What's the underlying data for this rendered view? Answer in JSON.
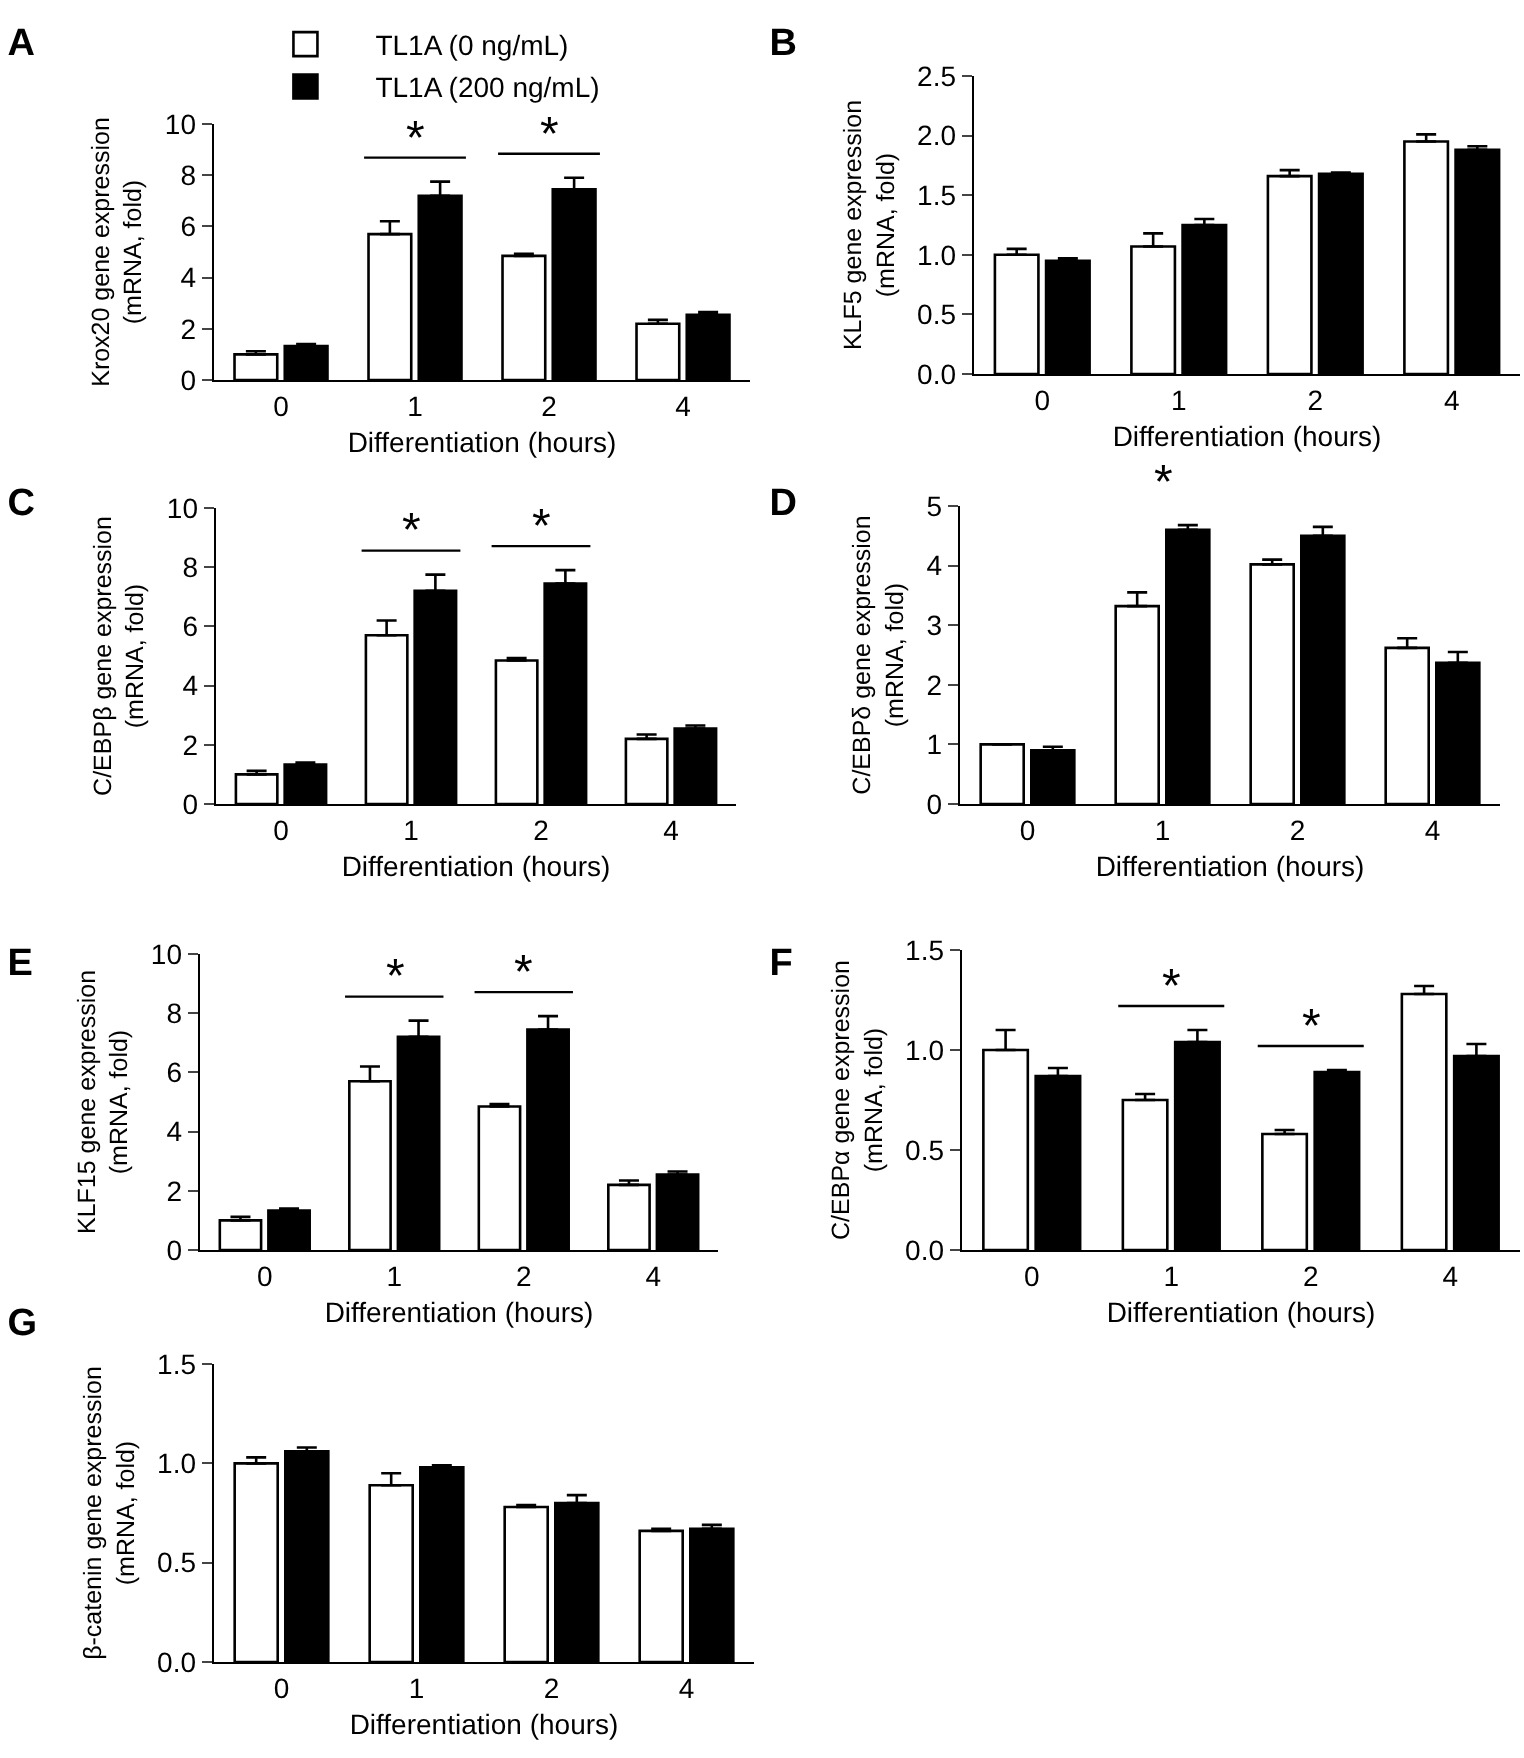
{
  "chart_data": [
    {
      "type": "bar",
      "title": "A",
      "xlabel": "Differentiation (hours)",
      "ylabel": "Krox20 gene expression\n(mRNA, fold)",
      "categories": [
        "0",
        "1",
        "2",
        "4"
      ],
      "legend": "top left",
      "series": [
        {
          "name": "TL1A (0 ng/mL)",
          "color": "#ffffff",
          "values": [
            1.0,
            5.7,
            4.85,
            2.2
          ],
          "errors": [
            [
              1.0,
              1.12
            ],
            [
              5.7,
              6.2
            ],
            [
              4.85,
              4.93
            ],
            [
              2.2,
              2.35
            ]
          ]
        },
        {
          "name": "TL1A (200 ng/mL)",
          "color": "#000000",
          "values": [
            1.33,
            7.2,
            7.45,
            2.55
          ],
          "errors": [
            [
              1.33,
              1.4
            ],
            [
              7.2,
              7.75
            ],
            [
              7.45,
              7.9
            ],
            [
              2.55,
              2.65
            ]
          ]
        }
      ],
      "ylim": [
        0,
        10
      ],
      "yticks": [
        0,
        2,
        4,
        6,
        8,
        10
      ],
      "annotations": [
        {
          "text": "*",
          "x": "1",
          "y": 7.2
        },
        {
          "text": "*",
          "x": "2",
          "y": 7.45
        }
      ]
    },
    {
      "type": "bar",
      "title": "B",
      "xlabel": "Differentiation (hours)",
      "ylabel": "KLF5 gene expression\n(mRNA, fold)",
      "categories": [
        "0",
        "1",
        "2",
        "4"
      ],
      "series": [
        {
          "color": "#ffffff",
          "values": [
            1.0,
            1.07,
            1.66,
            1.95
          ],
          "errors": [
            [
              1.0,
              1.05
            ],
            [
              1.07,
              1.18
            ],
            [
              1.66,
              1.71
            ],
            [
              1.95,
              2.01
            ]
          ]
        },
        {
          "color": "#000000",
          "values": [
            0.95,
            1.25,
            1.68,
            1.88
          ],
          "errors": [
            [
              0.95,
              0.97
            ],
            [
              1.25,
              1.3
            ],
            [
              1.68,
              1.69
            ],
            [
              1.88,
              1.91
            ]
          ]
        }
      ],
      "ylim": [
        0,
        2.5
      ],
      "yticks": [
        {
          "value": 0,
          "label": "0.0"
        },
        0.5,
        {
          "value": 1,
          "label": "1.0"
        },
        1.5,
        {
          "value": 2,
          "label": "2.0"
        },
        2.5
      ]
    },
    {
      "type": "bar",
      "title": "C",
      "xlabel": "Differentiation (hours)",
      "ylabel": "C/EBPβ gene expression\n(mRNA, fold)",
      "categories": [
        "0",
        "1",
        "2",
        "4"
      ],
      "series": [
        {
          "color": "#ffffff",
          "values": [
            1.0,
            5.7,
            4.85,
            2.2
          ],
          "errors": [
            [
              1.0,
              1.12
            ],
            [
              5.7,
              6.2
            ],
            [
              4.85,
              4.93
            ],
            [
              2.2,
              2.35
            ]
          ]
        },
        {
          "color": "#000000",
          "values": [
            1.33,
            7.2,
            7.45,
            2.55
          ],
          "errors": [
            [
              1.33,
              1.4
            ],
            [
              7.2,
              7.75
            ],
            [
              7.45,
              7.9
            ],
            [
              2.55,
              2.65
            ]
          ]
        }
      ],
      "ylim": [
        0,
        10
      ],
      "yticks": [
        0,
        2,
        4,
        6,
        8,
        10
      ],
      "annotations": [
        {
          "text": "*",
          "x": "1",
          "y": 7.2
        },
        {
          "text": "*",
          "x": "2",
          "y": 7.45
        }
      ]
    },
    {
      "type": "bar",
      "title": "D",
      "xlabel": "Differentiation (hours)",
      "ylabel": "C/EBPδ gene expression\n(mRNA, fold)",
      "categories": [
        "0",
        "1",
        "2",
        "4"
      ],
      "series": [
        {
          "color": "#ffffff",
          "values": [
            1.0,
            3.32,
            4.02,
            2.62
          ],
          "errors": [
            [
              1.0,
              1.0
            ],
            [
              3.32,
              3.55
            ],
            [
              4.02,
              4.1
            ],
            [
              2.62,
              2.78
            ]
          ]
        },
        {
          "color": "#000000",
          "values": [
            0.9,
            4.6,
            4.5,
            2.37
          ],
          "errors": [
            [
              0.9,
              0.96
            ],
            [
              4.6,
              4.68
            ],
            [
              4.5,
              4.65
            ],
            [
              2.37,
              2.55
            ]
          ]
        }
      ],
      "ylim": [
        0,
        5
      ],
      "yticks": [
        0,
        1,
        2,
        3,
        4,
        5
      ],
      "annotations": [
        {
          "text": "*",
          "x": "1",
          "y": 4.6
        }
      ]
    },
    {
      "type": "bar",
      "title": "E",
      "xlabel": "Differentiation (hours)",
      "ylabel": "KLF15 gene expression\n(mRNA, fold)",
      "categories": [
        "0",
        "1",
        "2",
        "4"
      ],
      "series": [
        {
          "color": "#ffffff",
          "values": [
            1.0,
            5.7,
            4.85,
            2.2
          ],
          "errors": [
            [
              1.0,
              1.12
            ],
            [
              5.7,
              6.2
            ],
            [
              4.85,
              4.93
            ],
            [
              2.2,
              2.35
            ]
          ]
        },
        {
          "color": "#000000",
          "values": [
            1.33,
            7.2,
            7.45,
            2.55
          ],
          "errors": [
            [
              1.33,
              1.4
            ],
            [
              7.2,
              7.75
            ],
            [
              7.45,
              7.9
            ],
            [
              2.55,
              2.65
            ]
          ]
        }
      ],
      "ylim": [
        0,
        10
      ],
      "yticks": [
        0,
        2,
        4,
        6,
        8,
        10
      ],
      "annotations": [
        {
          "text": "*",
          "x": "1",
          "y": 7.2
        },
        {
          "text": "*",
          "x": "2",
          "y": 7.45
        }
      ]
    },
    {
      "type": "bar",
      "title": "F",
      "xlabel": "Differentiation (hours)",
      "ylabel": "C/EBPα gene expression\n(mRNA, fold)",
      "categories": [
        "0",
        "1",
        "2",
        "4"
      ],
      "series": [
        {
          "color": "#ffffff",
          "values": [
            1.0,
            0.75,
            0.58,
            1.28
          ],
          "errors": [
            [
              1.0,
              1.1
            ],
            [
              0.75,
              0.78
            ],
            [
              0.58,
              0.6
            ],
            [
              1.28,
              1.32
            ]
          ]
        },
        {
          "color": "#000000",
          "values": [
            0.87,
            1.04,
            0.89,
            0.97
          ],
          "errors": [
            [
              0.87,
              0.91
            ],
            [
              1.04,
              1.1
            ],
            [
              0.89,
              0.9
            ],
            [
              0.97,
              1.03
            ]
          ]
        }
      ],
      "ylim": [
        0,
        1.5
      ],
      "yticks": [
        {
          "value": 0,
          "label": "0.0"
        },
        0.5,
        {
          "value": 1,
          "label": "1.0"
        },
        1.5
      ],
      "annotations": [
        {
          "text": "*",
          "x": "1",
          "y": 1.04
        },
        {
          "text": "*",
          "x": "2",
          "y": 0.89
        }
      ]
    },
    {
      "type": "bar",
      "title": "G",
      "xlabel": "Differentiation (hours)",
      "ylabel": "β-catenin gene expression\n(mRNA, fold)",
      "categories": [
        "0",
        "1",
        "2",
        "4"
      ],
      "series": [
        {
          "color": "#ffffff",
          "values": [
            1.0,
            0.89,
            0.78,
            0.66
          ],
          "errors": [
            [
              1.0,
              1.03
            ],
            [
              0.89,
              0.95
            ],
            [
              0.78,
              0.79
            ],
            [
              0.66,
              0.67
            ]
          ]
        },
        {
          "color": "#000000",
          "values": [
            1.06,
            0.98,
            0.8,
            0.67
          ],
          "errors": [
            [
              1.06,
              1.08
            ],
            [
              0.98,
              0.99
            ],
            [
              0.8,
              0.84
            ],
            [
              0.67,
              0.69
            ]
          ]
        }
      ],
      "ylim": [
        0,
        1.5
      ],
      "yticks": [
        {
          "value": 0,
          "label": "0.0"
        },
        0.5,
        {
          "value": 1,
          "label": "1.0"
        },
        1.5
      ]
    }
  ]
}
